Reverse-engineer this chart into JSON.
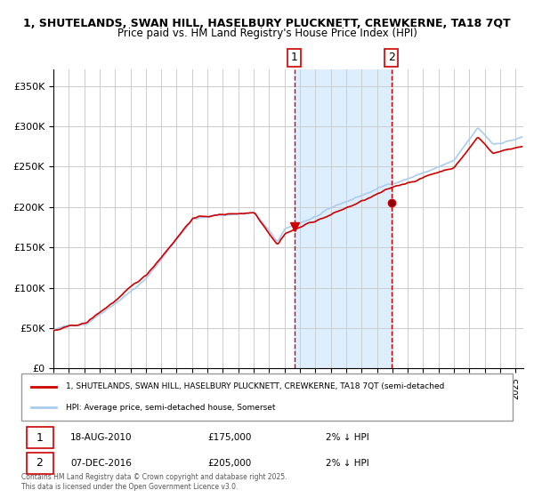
{
  "title_line1": "1, SHUTELANDS, SWAN HILL, HASELBURY PLUCKNETT, CREWKERNE, TA18 7QT",
  "title_line2": "Price paid vs. HM Land Registry's House Price Index (HPI)",
  "ylabel_ticks": [
    "£0",
    "£50K",
    "£100K",
    "£150K",
    "£200K",
    "£250K",
    "£300K",
    "£350K"
  ],
  "ytick_values": [
    0,
    50000,
    100000,
    150000,
    200000,
    250000,
    300000,
    350000
  ],
  "ylim": [
    0,
    370000
  ],
  "xlim_start": 1995.0,
  "xlim_end": 2025.5,
  "transaction1_date": "18-AUG-2010",
  "transaction1_price": 175000,
  "transaction1_pct": "2% ↓ HPI",
  "transaction1_x": 2010.63,
  "transaction2_date": "07-DEC-2016",
  "transaction2_price": 205000,
  "transaction2_pct": "2% ↓ HPI",
  "transaction2_x": 2016.93,
  "shade_color": "#ddeeff",
  "hpi_line_color": "#aaccee",
  "price_line_color": "#cc0000",
  "dashed_line_color": "#cc0000",
  "marker_color": "#cc0000",
  "legend_label1": "1, SHUTELANDS, SWAN HILL, HASELBURY PLUCKNETT, CREWKERNE, TA18 7QT (semi-detached",
  "legend_label2": "HPI: Average price, semi-detached house, Somerset",
  "footer_text": "Contains HM Land Registry data © Crown copyright and database right 2025.\nThis data is licensed under the Open Government Licence v3.0.",
  "background_color": "#ffffff",
  "grid_color": "#cccccc"
}
